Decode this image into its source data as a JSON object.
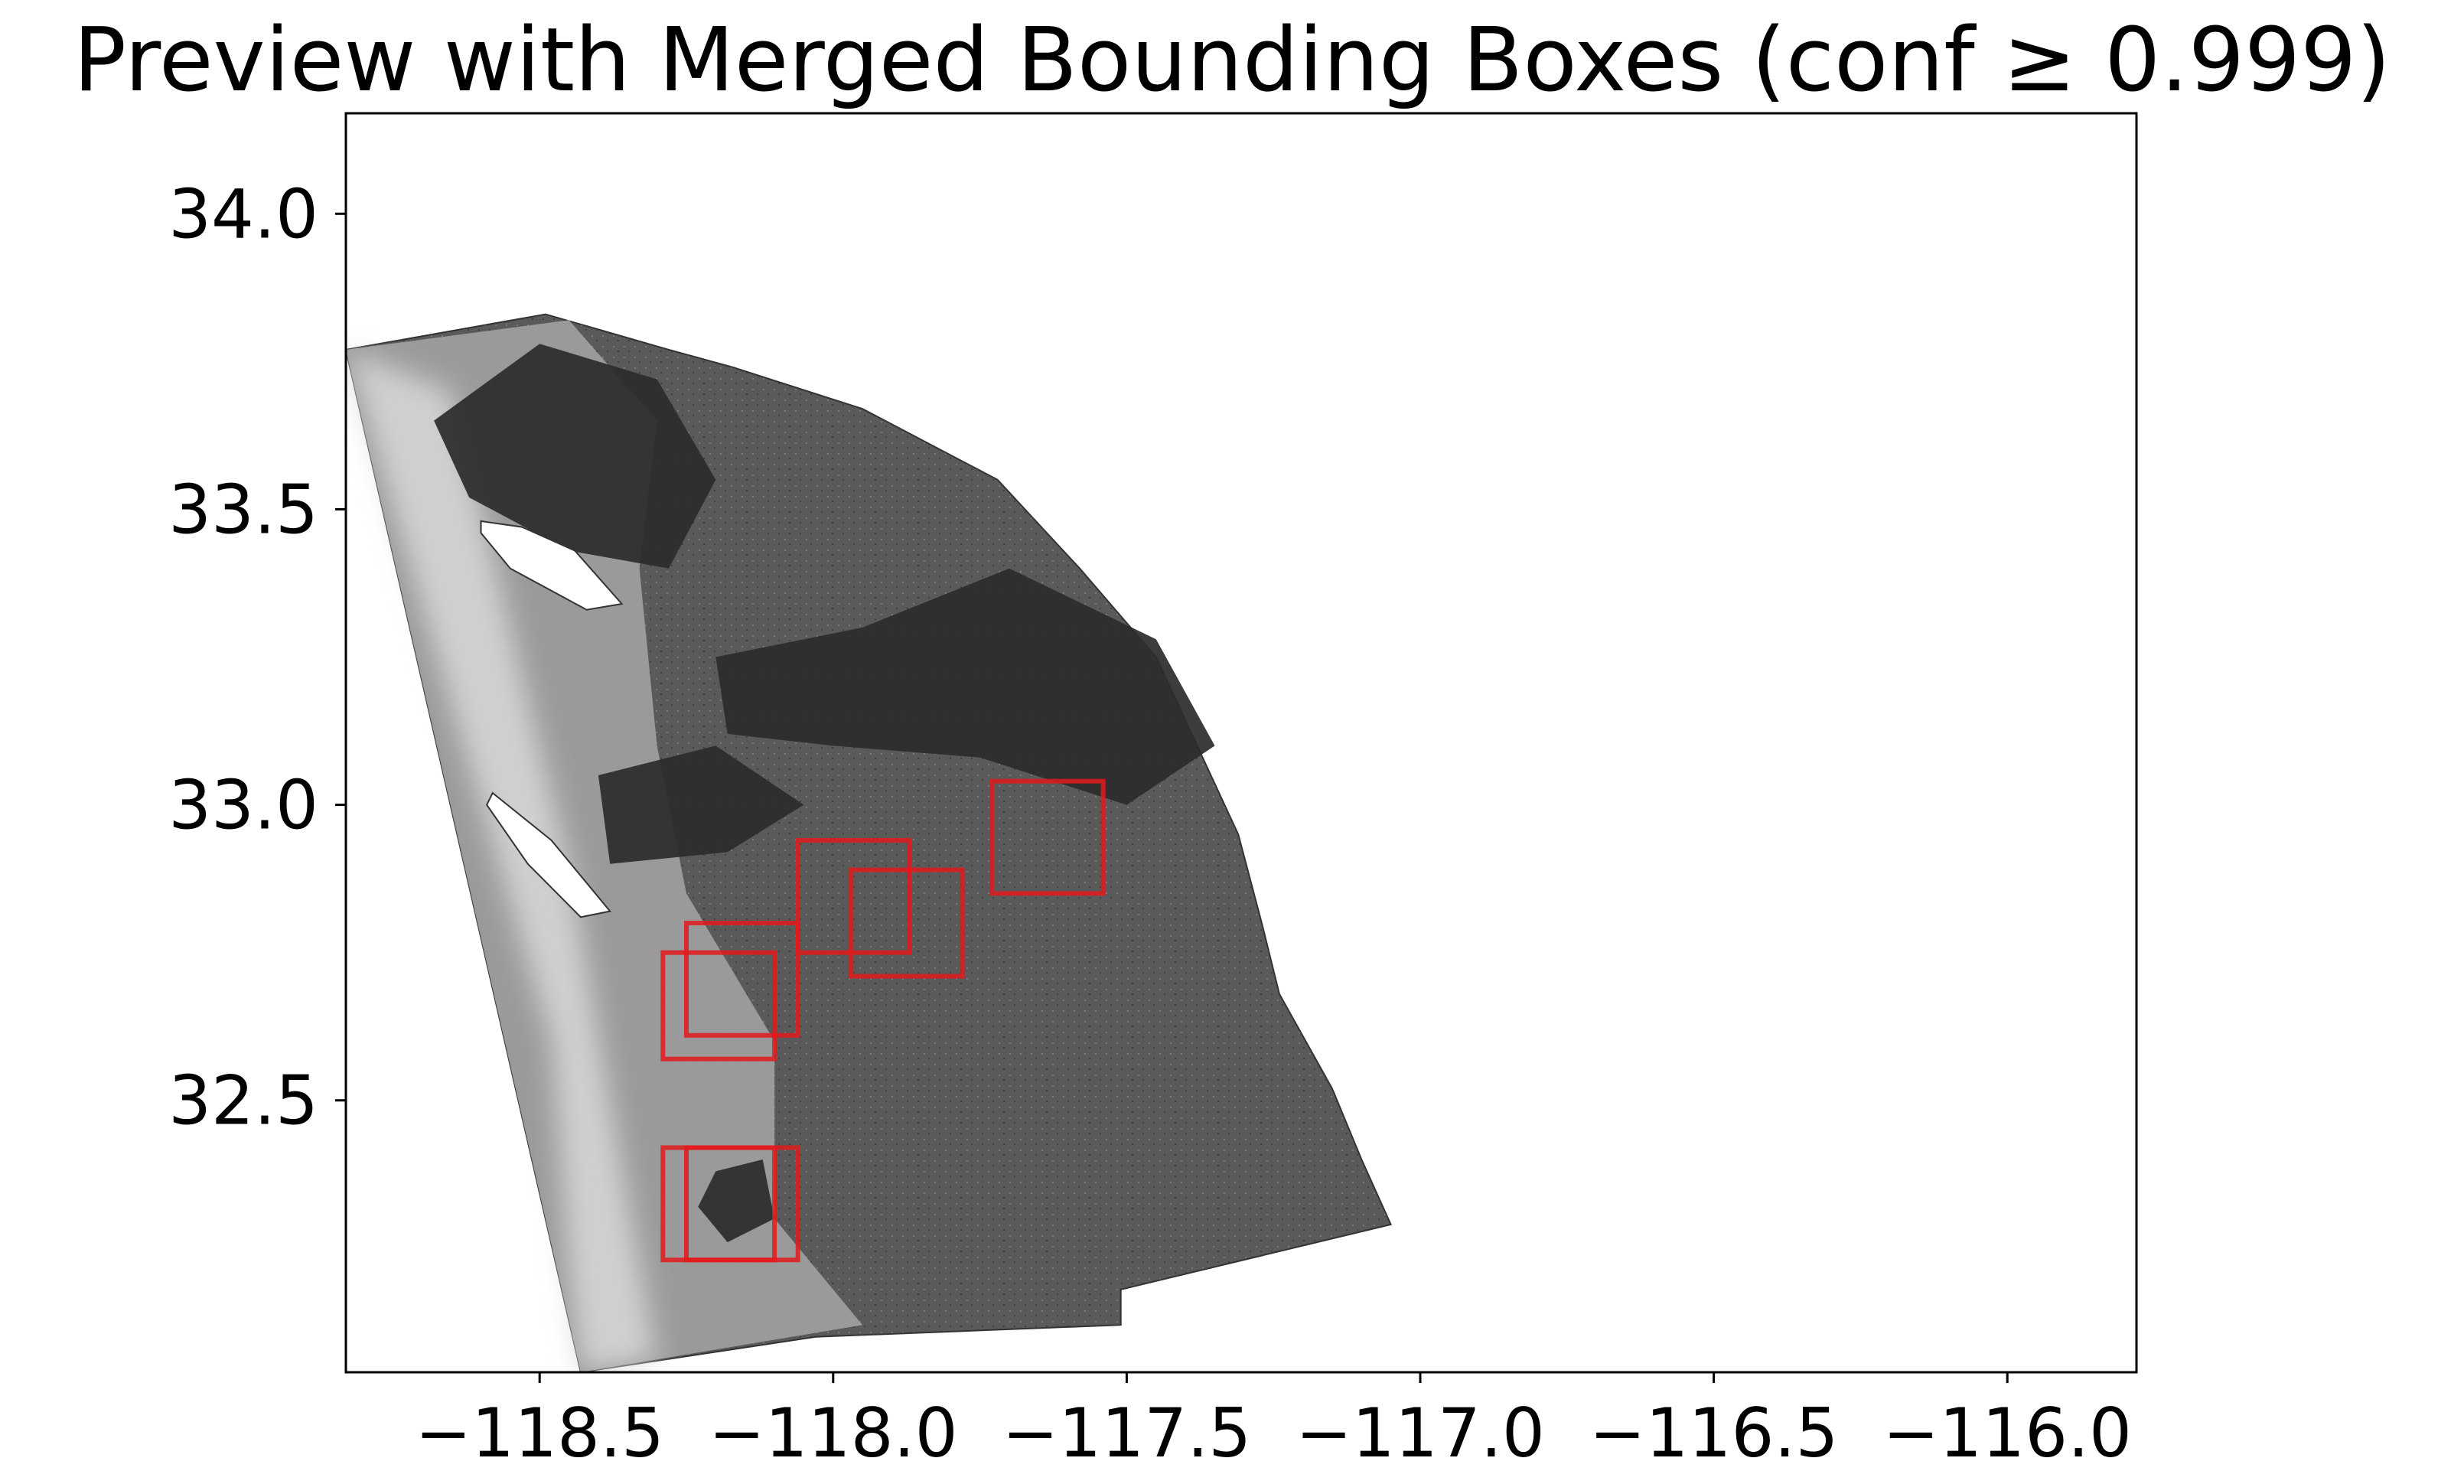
{
  "chart_data": {
    "type": "scatter",
    "title": "Preview with Merged Bounding Boxes (conf ≥ 0.999)",
    "xlabel": "",
    "ylabel": "",
    "xlim": [
      -118.83,
      -115.78
    ],
    "ylim": [
      32.04,
      34.17
    ],
    "x_ticks": [
      -118.5,
      -118.0,
      -117.5,
      -117.0,
      -116.5,
      -116.0
    ],
    "x_tick_labels": [
      "−118.5",
      "−118.0",
      "−117.5",
      "−117.0",
      "−116.5",
      "−116.0"
    ],
    "y_ticks": [
      32.5,
      33.0,
      33.5,
      34.0
    ],
    "y_tick_labels": [
      "32.5",
      "33.0",
      "33.5",
      "34.0"
    ],
    "grid": false,
    "raster": {
      "description_colors": [
        "#2b2b2b",
        "#575757",
        "#9e9e9e",
        "#d6d6d6"
      ],
      "outline": [
        [
          -118.83,
          33.77
        ],
        [
          -118.49,
          33.83
        ],
        [
          -118.28,
          33.77
        ],
        [
          -118.17,
          33.74
        ],
        [
          -117.95,
          33.67
        ],
        [
          -117.72,
          33.55
        ],
        [
          -117.58,
          33.4
        ],
        [
          -117.45,
          33.25
        ],
        [
          -117.38,
          33.1
        ],
        [
          -117.31,
          32.95
        ],
        [
          -117.27,
          32.8
        ],
        [
          -117.24,
          32.68
        ],
        [
          -117.15,
          32.52
        ],
        [
          -117.1,
          32.4
        ],
        [
          -117.05,
          32.29
        ],
        [
          -117.51,
          32.18
        ],
        [
          -117.51,
          32.12
        ],
        [
          -118.03,
          32.1
        ],
        [
          -118.43,
          32.04
        ],
        [
          -118.83,
          33.77
        ]
      ],
      "islands": [
        [
          [
            -118.6,
            33.48
          ],
          [
            -118.53,
            33.47
          ],
          [
            -118.44,
            33.43
          ],
          [
            -118.36,
            33.34
          ],
          [
            -118.42,
            33.33
          ],
          [
            -118.55,
            33.4
          ],
          [
            -118.6,
            33.46
          ]
        ],
        [
          [
            -118.58,
            33.02
          ],
          [
            -118.48,
            32.94
          ],
          [
            -118.38,
            32.82
          ],
          [
            -118.43,
            32.81
          ],
          [
            -118.52,
            32.9
          ],
          [
            -118.59,
            33.0
          ]
        ]
      ]
    },
    "boxes_color": "#e31a1c",
    "boxes": [
      {
        "x0": -117.73,
        "x1": -117.54,
        "y0": 32.85,
        "y1": 33.04
      },
      {
        "x0": -118.06,
        "x1": -117.87,
        "y0": 32.75,
        "y1": 32.94
      },
      {
        "x0": -117.97,
        "x1": -117.78,
        "y0": 32.71,
        "y1": 32.89
      },
      {
        "x0": -118.25,
        "x1": -118.06,
        "y0": 32.61,
        "y1": 32.8
      },
      {
        "x0": -118.29,
        "x1": -118.1,
        "y0": 32.57,
        "y1": 32.75
      },
      {
        "x0": -118.29,
        "x1": -118.1,
        "y0": 32.23,
        "y1": 32.42
      },
      {
        "x0": -118.25,
        "x1": -118.06,
        "y0": 32.23,
        "y1": 32.42
      }
    ]
  }
}
